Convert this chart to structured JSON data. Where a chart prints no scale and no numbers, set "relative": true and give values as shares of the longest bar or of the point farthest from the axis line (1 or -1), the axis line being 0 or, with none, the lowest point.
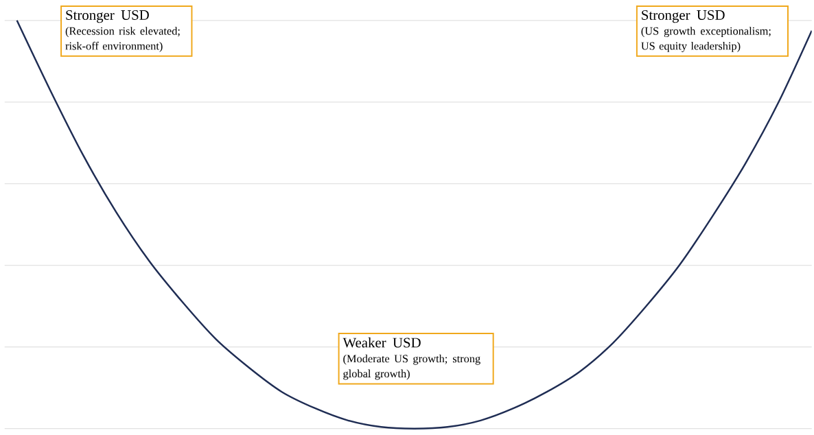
{
  "chart_data": {
    "type": "line",
    "relative": true,
    "grid": "y",
    "tick_labels": false,
    "color": "#1f2d54",
    "categories": [
      null,
      null,
      null,
      null,
      null,
      null,
      null,
      null,
      null,
      null,
      null,
      null,
      null,
      null,
      null,
      null,
      null,
      null,
      null,
      null,
      null,
      null,
      null,
      null,
      null
    ],
    "values": [
      1,
      0.83,
      0.67,
      0.53,
      0.41,
      0.31,
      0.22,
      0.15,
      0.09,
      0.05,
      0.02,
      0.004,
      0,
      0.004,
      0.02,
      0.05,
      0.09,
      0.14,
      0.21,
      0.3,
      0.4,
      0.52,
      0.65,
      0.8,
      0.975
    ],
    "annotations": [
      "Stronger USD",
      "(Recession risk elevated; risk-off environment)",
      "Stronger USD",
      "(US growth exceptionalism; US equity leadership)",
      "Weaker USD",
      "(Moderate US growth; strong global growth)"
    ]
  }
}
